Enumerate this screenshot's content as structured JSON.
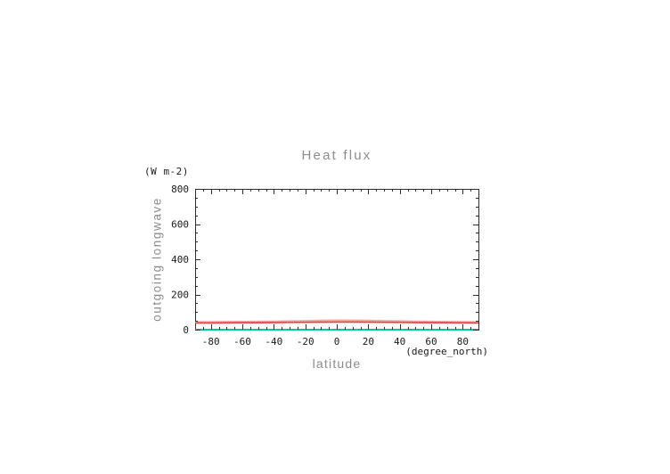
{
  "window": {
    "background": "#ffffff"
  },
  "chart": {
    "title": "Heat flux",
    "y_unit_label": "(W m-2)",
    "y_axis_label": "outgoing longwave",
    "x_axis_label": "latitude",
    "x_unit_label": "(degree_north)",
    "frame_color": "#2e2e2e",
    "tick_color": "#2e2e2e",
    "tick_label_color": "#1a1a1a",
    "heading_color": "#8c8c8c"
  },
  "chart_data": {
    "type": "line",
    "title": "Heat flux",
    "xlabel": "latitude",
    "x_unit": "(degree_north)",
    "ylabel": "outgoing longwave",
    "y_unit": "(W m-2)",
    "xlim": [
      -90,
      90
    ],
    "ylim": [
      0,
      800
    ],
    "x_major_ticks": [
      -80,
      -60,
      -40,
      -20,
      0,
      20,
      40,
      60,
      80
    ],
    "x_minor_step": 5,
    "y_major_ticks": [
      0,
      200,
      400,
      600,
      800
    ],
    "y_minor_step": 50,
    "grid": false,
    "legend": "none",
    "x": [
      -90,
      -80,
      -70,
      -60,
      -50,
      -40,
      -30,
      -20,
      -10,
      0,
      10,
      20,
      30,
      40,
      50,
      60,
      70,
      80,
      90
    ],
    "series": [
      {
        "name": "pink_line",
        "color": "#f5a3a3",
        "values": [
          43,
          43.5,
          44,
          44.5,
          45,
          46,
          47.5,
          49,
          51,
          52,
          51.5,
          50.5,
          49,
          47.5,
          46,
          45,
          44,
          43,
          42.5
        ]
      },
      {
        "name": "red_line",
        "color": "#e23b3b",
        "values": [
          38,
          38,
          38.5,
          39,
          39.5,
          40,
          41,
          41.5,
          42.5,
          43,
          43,
          42.5,
          41.5,
          41,
          40,
          39.5,
          39,
          38.5,
          38
        ]
      },
      {
        "name": "teal_line",
        "color": "#00c99a",
        "values": [
          0,
          0,
          0,
          0,
          0,
          0,
          0,
          0,
          0,
          0,
          0,
          0,
          0,
          0,
          0,
          0,
          0,
          0,
          0
        ]
      }
    ]
  }
}
